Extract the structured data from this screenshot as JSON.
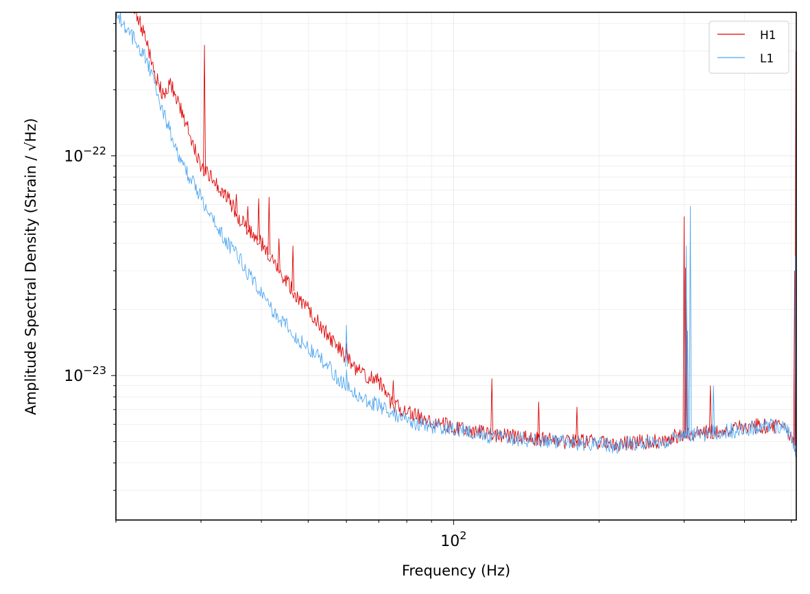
{
  "chart_data": {
    "type": "line",
    "title": "",
    "xlabel": "Frequency (Hz)",
    "ylabel": "Amplitude Spectral Density (Strain / √Hz)",
    "xscale": "log",
    "yscale": "log",
    "xlim": [
      20,
      512
    ],
    "ylim": [
      2.2e-24,
      4.5e-22
    ],
    "grid": true,
    "legend_position": "top-right",
    "x_major_tick_labels": [
      "10^2"
    ],
    "y_major_tick_labels": [
      "10^-23",
      "10^-22"
    ],
    "series": [
      {
        "name": "H1",
        "color": "#dd0000",
        "x": [
          20,
          21,
          22,
          23,
          24,
          25,
          26,
          28,
          30,
          32,
          34,
          36,
          38,
          40,
          42,
          44,
          46,
          48,
          50,
          52,
          54,
          56,
          58,
          59.9,
          60,
          60.1,
          62,
          64,
          66,
          68,
          70,
          74,
          78,
          80,
          85,
          90,
          95,
          100,
          110,
          120,
          130,
          140,
          150,
          160,
          170,
          180,
          190,
          200,
          210,
          220,
          230,
          240,
          250,
          260,
          270,
          280,
          290,
          300,
          301,
          302,
          303,
          304,
          310,
          320,
          330,
          340,
          350,
          360,
          370,
          380,
          390,
          400,
          420,
          440,
          460,
          480,
          490,
          500,
          505,
          508,
          510,
          512
        ],
        "values": [
          6e-22,
          5e-22,
          4.5e-22,
          3.5e-22,
          2.4e-22,
          1.9e-22,
          2.1e-22,
          1.4e-22,
          9e-23,
          7.7e-23,
          6.5e-23,
          5.2e-23,
          4.5e-23,
          4e-23,
          3.4e-23,
          2.9e-23,
          2.5e-23,
          2.2e-23,
          2e-23,
          1.8e-23,
          1.6e-23,
          1.45e-23,
          1.32e-23,
          1.2e-23,
          1.25e-23,
          1.2e-23,
          1.1e-23,
          1.05e-23,
          1e-23,
          9.8e-24,
          9.5e-24,
          7.6e-24,
          7e-24,
          6.8e-24,
          6.5e-24,
          6.2e-24,
          6e-24,
          5.8e-24,
          5.6e-24,
          5.4e-24,
          5.3e-24,
          5.2e-24,
          5.1e-24,
          5.1e-24,
          5e-24,
          5e-24,
          5e-24,
          5e-24,
          4.9e-24,
          4.9e-24,
          4.9e-24,
          5e-24,
          5e-24,
          5e-24,
          5.1e-24,
          5.2e-24,
          5.3e-24,
          5.3e-24,
          5.3e-24,
          5.3e-24,
          5.3e-24,
          5.4e-24,
          5.4e-24,
          5.5e-24,
          5.5e-24,
          5.5e-24,
          5.6e-24,
          5.6e-24,
          5.7e-24,
          5.7e-24,
          5.8e-24,
          5.8e-24,
          5.9e-24,
          5.9e-24,
          5.9e-24,
          5.8e-24,
          5.6e-24,
          5.3e-24,
          5e-24,
          4.8e-24,
          4.6e-24,
          4.4e-24
        ],
        "peaks": [
          {
            "x": 30.5,
            "value": 3.2e-22
          },
          {
            "x": 33.5,
            "value": 7e-23
          },
          {
            "x": 35.5,
            "value": 6.7e-23
          },
          {
            "x": 37.5,
            "value": 5.9e-23
          },
          {
            "x": 39.5,
            "value": 6.4e-23
          },
          {
            "x": 41.5,
            "value": 6.5e-23
          },
          {
            "x": 43.5,
            "value": 4.2e-23
          },
          {
            "x": 46.5,
            "value": 3.9e-23
          },
          {
            "x": 60,
            "value": 1.4e-23
          },
          {
            "x": 75,
            "value": 9.5e-24
          },
          {
            "x": 120,
            "value": 9.7e-24
          },
          {
            "x": 150,
            "value": 7.6e-24
          },
          {
            "x": 180,
            "value": 7.2e-24
          },
          {
            "x": 300,
            "value": 5.3e-23
          },
          {
            "x": 302,
            "value": 3.1e-23
          },
          {
            "x": 303.5,
            "value": 2.2e-23
          },
          {
            "x": 340,
            "value": 9e-24
          },
          {
            "x": 508,
            "value": 3e-23
          },
          {
            "x": 511,
            "value": 3e-22
          }
        ]
      },
      {
        "name": "L1",
        "color": "#4da6f0",
        "x": [
          20,
          21,
          22,
          23,
          24,
          25,
          26,
          27,
          28,
          30,
          32,
          34,
          36,
          38,
          40,
          42,
          44,
          46,
          48,
          50,
          52,
          54,
          56,
          58,
          59.9,
          60,
          60.1,
          62,
          64,
          66,
          68,
          70,
          74,
          78,
          80,
          85,
          90,
          95,
          100,
          110,
          120,
          130,
          140,
          150,
          160,
          170,
          180,
          190,
          200,
          210,
          220,
          230,
          240,
          250,
          260,
          270,
          280,
          290,
          300,
          310,
          320,
          330,
          340,
          350,
          360,
          370,
          380,
          390,
          400,
          420,
          440,
          460,
          480,
          490,
          500,
          505,
          508,
          510,
          512
        ],
        "values": [
          4.5e-22,
          3.8e-22,
          3.3e-22,
          2.8e-22,
          2.2e-22,
          1.6e-22,
          1.25e-22,
          1e-22,
          8.5e-23,
          6.5e-23,
          5e-23,
          4e-23,
          3.4e-23,
          2.8e-23,
          2.4e-23,
          2e-23,
          1.8e-23,
          1.6e-23,
          1.45e-23,
          1.35e-23,
          1.25e-23,
          1.15e-23,
          1.05e-23,
          9.5e-24,
          9e-24,
          1.1e-23,
          9e-24,
          8.5e-24,
          8e-24,
          7.7e-24,
          7.5e-24,
          7.3e-24,
          6.8e-24,
          6.5e-24,
          6.3e-24,
          6e-24,
          5.9e-24,
          5.8e-24,
          5.7e-24,
          5.5e-24,
          5.3e-24,
          5.2e-24,
          5.1e-24,
          5e-24,
          5e-24,
          5e-24,
          4.9e-24,
          4.9e-24,
          4.9e-24,
          4.8e-24,
          4.8e-24,
          4.9e-24,
          4.9e-24,
          5e-24,
          5e-24,
          5e-24,
          5.1e-24,
          5.2e-24,
          5.3e-24,
          5.4e-24,
          5.4e-24,
          5.4e-24,
          5.5e-24,
          5.5e-24,
          5.5e-24,
          5.6e-24,
          5.6e-24,
          5.6e-24,
          5.7e-24,
          5.8e-24,
          5.9e-24,
          5.9e-24,
          5.8e-24,
          5.6e-24,
          5.2e-24,
          4.8e-24,
          4.6e-24,
          4.5e-24,
          4.3e-24
        ],
        "peaks": [
          {
            "x": 60,
            "value": 1.7e-23
          },
          {
            "x": 303,
            "value": 3.9e-23
          },
          {
            "x": 305,
            "value": 1.6e-23
          },
          {
            "x": 309,
            "value": 5.9e-23
          },
          {
            "x": 345,
            "value": 9e-24
          },
          {
            "x": 510,
            "value": 3.5e-23
          }
        ]
      }
    ]
  }
}
